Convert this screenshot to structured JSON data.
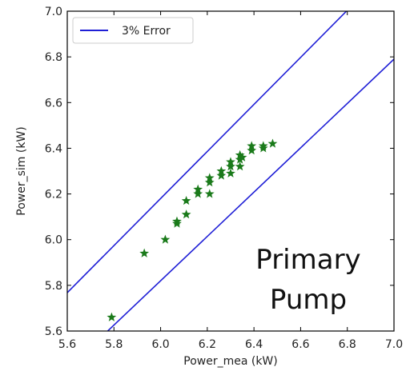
{
  "chart_data": {
    "type": "scatter",
    "xlabel": "Power_mea (kW)",
    "ylabel": "Power_sim (kW)",
    "xlim": [
      5.6,
      7.0
    ],
    "ylim": [
      5.6,
      7.0
    ],
    "xticks": [
      "5.6",
      "5.8",
      "6.0",
      "6.2",
      "6.4",
      "6.6",
      "6.8",
      "7.0"
    ],
    "yticks": [
      "5.6",
      "5.8",
      "6.0",
      "6.2",
      "6.4",
      "6.6",
      "6.8",
      "7.0"
    ],
    "legend": {
      "label": "3% Error",
      "placement": "top-left"
    },
    "error_band_percent": 3,
    "annotation": [
      "Primary",
      "Pump"
    ],
    "line_color": "#1f1fd6",
    "marker_color": "#1a7a1a",
    "marker": "star",
    "points": [
      {
        "x": 5.79,
        "y": 5.66
      },
      {
        "x": 5.93,
        "y": 5.94
      },
      {
        "x": 6.02,
        "y": 6.0
      },
      {
        "x": 6.07,
        "y": 6.07
      },
      {
        "x": 6.07,
        "y": 6.08
      },
      {
        "x": 6.11,
        "y": 6.11
      },
      {
        "x": 6.11,
        "y": 6.17
      },
      {
        "x": 6.16,
        "y": 6.2
      },
      {
        "x": 6.16,
        "y": 6.22
      },
      {
        "x": 6.21,
        "y": 6.2
      },
      {
        "x": 6.21,
        "y": 6.25
      },
      {
        "x": 6.21,
        "y": 6.27
      },
      {
        "x": 6.26,
        "y": 6.28
      },
      {
        "x": 6.26,
        "y": 6.3
      },
      {
        "x": 6.3,
        "y": 6.29
      },
      {
        "x": 6.3,
        "y": 6.32
      },
      {
        "x": 6.3,
        "y": 6.34
      },
      {
        "x": 6.34,
        "y": 6.32
      },
      {
        "x": 6.34,
        "y": 6.35
      },
      {
        "x": 6.34,
        "y": 6.37
      },
      {
        "x": 6.35,
        "y": 6.36
      },
      {
        "x": 6.39,
        "y": 6.39
      },
      {
        "x": 6.39,
        "y": 6.41
      },
      {
        "x": 6.44,
        "y": 6.4
      },
      {
        "x": 6.44,
        "y": 6.41
      },
      {
        "x": 6.48,
        "y": 6.42
      }
    ]
  }
}
